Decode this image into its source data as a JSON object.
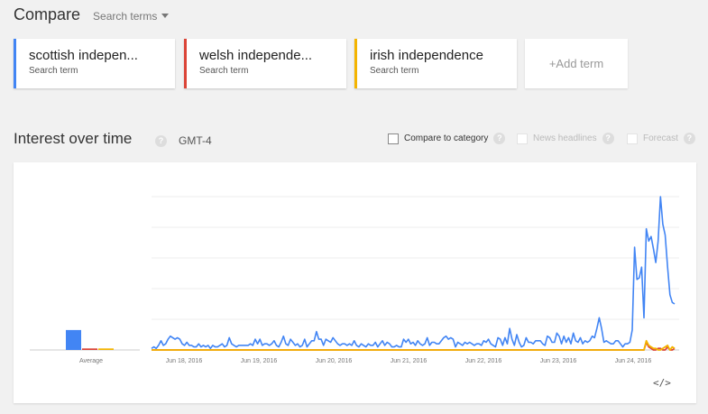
{
  "compare": {
    "title": "Compare",
    "search_terms_label": "Search terms"
  },
  "terms": [
    {
      "name": "scottish indepen...",
      "sub": "Search term",
      "color": "#4285f4"
    },
    {
      "name": "welsh independe...",
      "sub": "Search term",
      "color": "#db4437"
    },
    {
      "name": "irish independence",
      "sub": "Search term",
      "color": "#f4b400"
    }
  ],
  "add_term": "+Add term",
  "interest": {
    "title": "Interest over time",
    "help": "?",
    "timezone": "GMT-4",
    "options": [
      {
        "label": "Compare to category",
        "enabled": true
      },
      {
        "label": "News headlines",
        "enabled": false
      },
      {
        "label": "Forecast",
        "enabled": false
      }
    ]
  },
  "embed_label": "</>",
  "chart_data": {
    "type": "line",
    "title": "",
    "xlabel": "",
    "ylabel": "",
    "ylim": [
      0,
      100
    ],
    "grid": true,
    "x_tick_labels": [
      "Jun 18, 2016",
      "Jun 19, 2016",
      "Jun 20, 2016",
      "Jun 21, 2016",
      "Jun 22, 2016",
      "Jun 23, 2016",
      "Jun 24, 2016"
    ],
    "average": {
      "label": "Average",
      "values": [
        13,
        1,
        1
      ]
    },
    "series": [
      {
        "name": "scottish indepen...",
        "color": "#4285f4",
        "values": [
          1,
          2,
          1,
          3,
          6,
          3,
          4,
          7,
          9,
          8,
          7,
          8,
          7,
          4,
          3,
          5,
          3,
          3,
          2,
          2,
          4,
          2,
          3,
          2,
          3,
          1,
          3,
          2,
          2,
          3,
          4,
          2,
          3,
          8,
          4,
          3,
          2,
          3,
          3,
          3,
          3,
          3,
          4,
          3,
          7,
          4,
          7,
          3,
          4,
          4,
          3,
          4,
          6,
          3,
          2,
          5,
          9,
          4,
          3,
          7,
          5,
          3,
          4,
          2,
          3,
          7,
          2,
          4,
          6,
          6,
          12,
          7,
          7,
          3,
          7,
          6,
          5,
          8,
          6,
          4,
          3,
          4,
          4,
          3,
          4,
          3,
          6,
          3,
          2,
          4,
          3,
          2,
          4,
          3,
          3,
          5,
          2,
          4,
          6,
          3,
          5,
          4,
          2,
          2,
          3,
          2,
          2,
          7,
          5,
          7,
          4,
          5,
          3,
          6,
          4,
          3,
          4,
          8,
          3,
          5,
          5,
          4,
          4,
          6,
          8,
          9,
          7,
          8,
          7,
          2,
          5,
          4,
          3,
          5,
          4,
          5,
          4,
          3,
          4,
          4,
          3,
          6,
          5,
          7,
          4,
          3,
          2,
          8,
          7,
          3,
          8,
          4,
          14,
          7,
          3,
          10,
          5,
          2,
          3,
          8,
          5,
          5,
          4,
          6,
          6,
          6,
          4,
          3,
          9,
          8,
          5,
          5,
          11,
          9,
          4,
          9,
          5,
          8,
          4,
          11,
          6,
          5,
          8,
          4,
          6,
          5,
          6,
          9,
          8,
          14,
          21,
          14,
          5,
          6,
          5,
          4,
          4,
          6,
          6,
          4,
          2,
          4,
          4,
          5,
          13,
          67,
          46,
          47,
          54,
          21,
          79,
          71,
          74,
          66,
          57,
          71,
          100,
          82,
          75,
          54,
          36,
          31,
          30
        ]
      },
      {
        "name": "welsh independe...",
        "color": "#db4437",
        "values": [
          0,
          0,
          0,
          0,
          0,
          0,
          0,
          0,
          0,
          0,
          0,
          0,
          0,
          0,
          0,
          0,
          0,
          0,
          0,
          0,
          0,
          0,
          0,
          0,
          0,
          0,
          0,
          0,
          0,
          0,
          0,
          0,
          0,
          0,
          0,
          0,
          0,
          0,
          0,
          0,
          0,
          0,
          0,
          0,
          0,
          0,
          0,
          0,
          0,
          0,
          0,
          0,
          0,
          0,
          0,
          0,
          0,
          0,
          0,
          0,
          0,
          0,
          0,
          0,
          0,
          0,
          0,
          0,
          0,
          0,
          0,
          0,
          0,
          0,
          0,
          0,
          0,
          0,
          0,
          0,
          0,
          0,
          0,
          0,
          0,
          0,
          0,
          0,
          0,
          0,
          0,
          0,
          0,
          0,
          0,
          0,
          0,
          0,
          0,
          0,
          0,
          0,
          0,
          0,
          0,
          0,
          0,
          0,
          0,
          0,
          0,
          0,
          0,
          0,
          0,
          0,
          0,
          0,
          0,
          0,
          0,
          0,
          0,
          0,
          0,
          0,
          0,
          0,
          0,
          0,
          0,
          0,
          0,
          0,
          0,
          0,
          0,
          0,
          0,
          0,
          0,
          0,
          0,
          0,
          0,
          0,
          0,
          0,
          0,
          0,
          0,
          0,
          0,
          0,
          0,
          0,
          0,
          0,
          0,
          0,
          0,
          0,
          0,
          0,
          0,
          0,
          0,
          0,
          0,
          0,
          0,
          0,
          0,
          0,
          0,
          0,
          0,
          0,
          0,
          0,
          0,
          0,
          0,
          0,
          0,
          0,
          0,
          0,
          0,
          0,
          0,
          0,
          0,
          0,
          0,
          0,
          0,
          0,
          0,
          0,
          0,
          0,
          0,
          0,
          0,
          0,
          0,
          0,
          0,
          0,
          5,
          2,
          1,
          0,
          0,
          1,
          1,
          0,
          0,
          2,
          0,
          0,
          1
        ]
      },
      {
        "name": "irish independence",
        "color": "#f4b400",
        "values": [
          0,
          0,
          0,
          0,
          0,
          0,
          0,
          0,
          0,
          0,
          0,
          0,
          0,
          0,
          0,
          0,
          0,
          0,
          0,
          0,
          0,
          0,
          0,
          0,
          0,
          0,
          0,
          0,
          0,
          0,
          0,
          0,
          0,
          0,
          0,
          0,
          0,
          0,
          0,
          0,
          0,
          0,
          0,
          0,
          0,
          0,
          0,
          0,
          0,
          0,
          0,
          0,
          0,
          0,
          0,
          0,
          0,
          0,
          0,
          0,
          0,
          0,
          0,
          0,
          0,
          0,
          0,
          0,
          0,
          0,
          0,
          0,
          0,
          0,
          0,
          0,
          0,
          0,
          0,
          0,
          0,
          0,
          0,
          0,
          0,
          0,
          0,
          0,
          0,
          0,
          0,
          0,
          0,
          0,
          0,
          0,
          0,
          0,
          0,
          0,
          0,
          0,
          0,
          0,
          0,
          0,
          0,
          0,
          0,
          0,
          0,
          0,
          0,
          0,
          0,
          0,
          0,
          0,
          0,
          0,
          0,
          0,
          0,
          0,
          0,
          0,
          0,
          0,
          0,
          0,
          0,
          0,
          0,
          0,
          0,
          0,
          0,
          0,
          0,
          0,
          0,
          0,
          0,
          0,
          0,
          0,
          0,
          0,
          0,
          0,
          0,
          0,
          0,
          0,
          0,
          0,
          0,
          0,
          0,
          0,
          0,
          0,
          0,
          0,
          0,
          0,
          0,
          0,
          0,
          0,
          0,
          0,
          0,
          0,
          0,
          0,
          0,
          0,
          0,
          0,
          0,
          0,
          0,
          0,
          0,
          0,
          0,
          0,
          0,
          0,
          0,
          0,
          0,
          0,
          0,
          0,
          0,
          0,
          0,
          0,
          0,
          0,
          0,
          0,
          0,
          0,
          0,
          0,
          0,
          0,
          6,
          3,
          2,
          1,
          1,
          0,
          0,
          1,
          2,
          3,
          0,
          2,
          1
        ]
      }
    ]
  }
}
